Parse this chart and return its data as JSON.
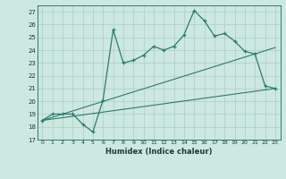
{
  "xlabel": "Humidex (Indice chaleur)",
  "xlim": [
    -0.5,
    23.5
  ],
  "ylim": [
    17,
    27.5
  ],
  "yticks": [
    17,
    18,
    19,
    20,
    21,
    22,
    23,
    24,
    25,
    26,
    27
  ],
  "xticks": [
    0,
    1,
    2,
    3,
    4,
    5,
    6,
    7,
    8,
    9,
    10,
    11,
    12,
    13,
    14,
    15,
    16,
    17,
    18,
    19,
    20,
    21,
    22,
    23
  ],
  "bg_color": "#cce8e0",
  "line_color": "#2d7a6e",
  "grid_color": "#aacfc8",
  "line1_x": [
    0,
    1,
    2,
    3,
    4,
    5,
    6,
    7,
    8,
    9,
    10,
    11,
    12,
    13,
    14,
    15,
    16,
    17,
    18,
    19,
    20,
    21,
    22,
    23
  ],
  "line1_y": [
    18.5,
    19.0,
    19.0,
    19.0,
    18.2,
    17.6,
    20.1,
    25.6,
    23.0,
    23.2,
    23.6,
    24.3,
    24.0,
    24.3,
    25.2,
    27.1,
    26.3,
    25.1,
    25.3,
    24.7,
    23.9,
    23.7,
    21.2,
    21.0
  ],
  "line2_x": [
    0,
    23
  ],
  "line2_y": [
    18.5,
    21.0
  ],
  "line3_x": [
    0,
    23
  ],
  "line3_y": [
    18.5,
    24.2
  ]
}
